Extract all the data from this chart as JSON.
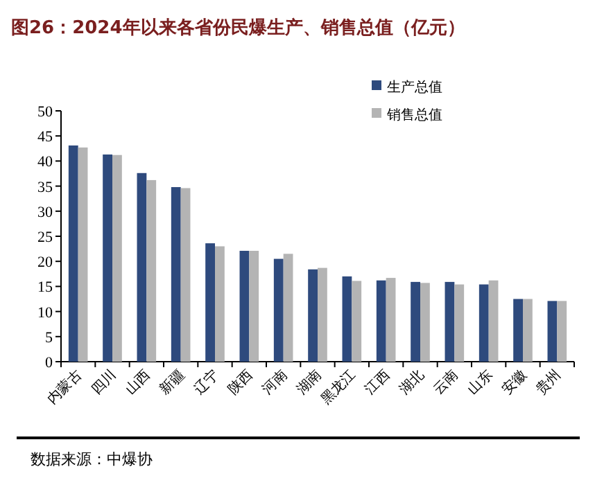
{
  "chart_data": {
    "type": "bar",
    "title": "图26：2024年以来各省份民爆生产、销售总值（亿元）",
    "categories": [
      "内蒙古",
      "四川",
      "山西",
      "新疆",
      "辽宁",
      "陕西",
      "河南",
      "湖南",
      "黑龙江",
      "江西",
      "湖北",
      "云南",
      "山东",
      "安徽",
      "贵州"
    ],
    "series": [
      {
        "name": "生产总值",
        "color": "#2e4a7d",
        "values": [
          43.1,
          41.3,
          37.6,
          34.8,
          23.6,
          22.1,
          20.5,
          18.4,
          17.0,
          16.2,
          15.9,
          15.9,
          15.4,
          12.5,
          12.1
        ]
      },
      {
        "name": "销售总值",
        "color": "#b4b4b4",
        "values": [
          42.7,
          41.2,
          36.2,
          34.6,
          23.0,
          22.1,
          21.5,
          18.7,
          16.1,
          16.7,
          15.7,
          15.4,
          16.2,
          12.5,
          12.1
        ]
      }
    ],
    "ylim": [
      0,
      50
    ],
    "yticks": [
      0,
      5,
      10,
      15,
      20,
      25,
      30,
      35,
      40,
      45,
      50
    ],
    "grid": false,
    "legend": "top right",
    "annotations": [
      "数据来源：中爆协"
    ]
  }
}
